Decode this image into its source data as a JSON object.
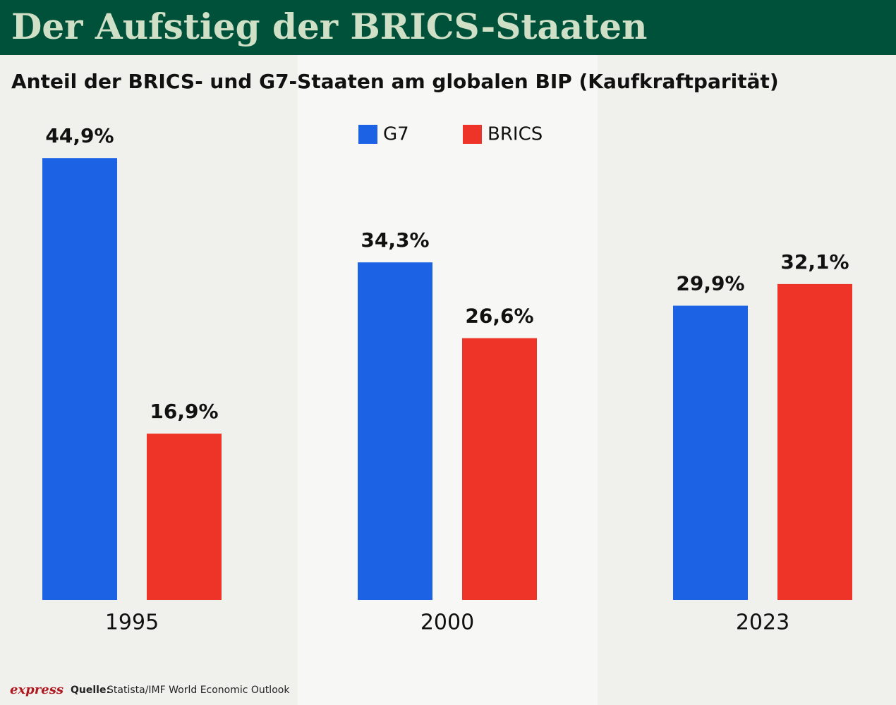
{
  "chart_data": {
    "type": "bar",
    "title": "Der Aufstieg der BRICS-Staaten",
    "subtitle": "Anteil der BRICS- und G7-Staaten am globalen BIP (Kaufkraftparität)",
    "categories": [
      "1995",
      "2000",
      "2023"
    ],
    "series": [
      {
        "name": "G7",
        "color": "#1b62e4",
        "values": [
          44.9,
          34.3,
          29.9
        ],
        "value_labels": [
          "44,9%",
          "34,3%",
          "29,9%"
        ]
      },
      {
        "name": "BRICS",
        "color": "#ee3429",
        "values": [
          16.9,
          26.6,
          32.1
        ],
        "value_labels": [
          "16,9%",
          "26,6%",
          "32,1%"
        ]
      }
    ],
    "logo": "express",
    "source_label": "Quelle:",
    "source": "Statista/IMF World Economic Outlook"
  }
}
